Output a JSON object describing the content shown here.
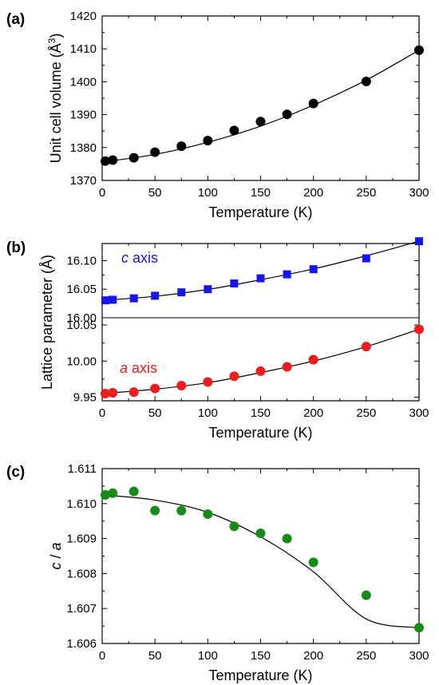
{
  "chart_data": [
    {
      "panel_label": "(a)",
      "type": "scatter",
      "xlabel": "Temperature (K)",
      "ylabel": "Unit cell volume (Å",
      "ylabel_sup": "3",
      "ylabel_end": ")",
      "xlim": [
        0,
        300
      ],
      "ylim": [
        1370,
        1420
      ],
      "xticks": [
        0,
        50,
        100,
        150,
        200,
        250,
        300
      ],
      "yticks": [
        1370,
        1380,
        1390,
        1400,
        1410,
        1420
      ],
      "grid": false,
      "series": [
        {
          "marker": "circle",
          "color": "#000000",
          "x": [
            3,
            10,
            30,
            50,
            75,
            100,
            125,
            150,
            175,
            200,
            250,
            300
          ],
          "y": [
            1375.9,
            1376.2,
            1376.9,
            1378.6,
            1380.4,
            1382.1,
            1385.2,
            1387.9,
            1390.1,
            1393.4,
            1400.1,
            1409.6
          ],
          "fit_curve": {
            "x": [
              0,
              50,
              100,
              150,
              200,
              250,
              300
            ],
            "y": [
              1375.6,
              1377.9,
              1381.6,
              1386.5,
              1392.9,
              1400.5,
              1409.6
            ]
          }
        }
      ]
    },
    {
      "panel_label": "(b)",
      "type": "scatter",
      "xlabel": "Temperature (K)",
      "ylabel": "Lattice parameter (Å)",
      "xlim": [
        0,
        300
      ],
      "xticks": [
        0,
        50,
        100,
        150,
        200,
        250,
        300
      ],
      "grid": false,
      "sub_axes": [
        {
          "ylim": [
            16.0,
            16.13
          ],
          "yticks": [
            16.0,
            16.05,
            16.1
          ],
          "ytick_labels": [
            "16.00",
            "16.05",
            "16.10"
          ],
          "series": [
            {
              "name": "c axis",
              "name_italic": "c",
              "name_rest": " axis",
              "marker": "square",
              "color": "#1515ee",
              "x": [
                3,
                10,
                30,
                50,
                75,
                100,
                125,
                150,
                175,
                200,
                250,
                300
              ],
              "y": [
                16.0305,
                16.0315,
                16.034,
                16.0385,
                16.0445,
                16.05,
                16.06,
                16.069,
                16.076,
                16.085,
                16.104,
                16.134
              ],
              "fit_curve": {
                "x": [
                  0,
                  50,
                  100,
                  150,
                  200,
                  250,
                  300
                ],
                "y": [
                  16.0305,
                  16.0375,
                  16.0495,
                  16.0665,
                  16.0855,
                  16.1085,
                  16.134
                ]
              }
            }
          ]
        },
        {
          "ylim": [
            9.945,
            10.06
          ],
          "yticks": [
            9.95,
            10.0,
            10.05
          ],
          "ytick_labels": [
            "9.95",
            "10.00",
            "10.05"
          ],
          "series": [
            {
              "name": "a axis",
              "name_italic": "a",
              "name_rest": " axis",
              "marker": "circle",
              "color": "#ee1c1c",
              "x": [
                3,
                10,
                30,
                50,
                75,
                100,
                125,
                150,
                175,
                200,
                250,
                300
              ],
              "y": [
                9.955,
                9.956,
                9.957,
                9.962,
                9.966,
                9.971,
                9.979,
                9.986,
                9.992,
                10.002,
                10.02,
                10.044
              ],
              "fit_curve": {
                "x": [
                  0,
                  50,
                  100,
                  150,
                  200,
                  250,
                  300
                ],
                "y": [
                  9.955,
                  9.961,
                  9.97,
                  9.984,
                  10.0,
                  10.02,
                  10.044
                ]
              }
            }
          ]
        }
      ]
    },
    {
      "panel_label": "(c)",
      "type": "scatter",
      "xlabel": "Temperature (K)",
      "ylabel": "c / a",
      "xlim": [
        0,
        300
      ],
      "ylim": [
        1.606,
        1.611
      ],
      "xticks": [
        0,
        50,
        100,
        150,
        200,
        250,
        300
      ],
      "yticks": [
        1.606,
        1.607,
        1.608,
        1.609,
        1.61,
        1.611
      ],
      "ytick_labels": [
        "1.606",
        "1.607",
        "1.608",
        "1.609",
        "1.610",
        "1.611"
      ],
      "grid": false,
      "series": [
        {
          "marker": "circle",
          "color": "#168c16",
          "x": [
            3,
            10,
            30,
            50,
            75,
            100,
            125,
            150,
            175,
            200,
            250,
            300
          ],
          "y": [
            1.61025,
            1.6103,
            1.61035,
            1.6098,
            1.6098,
            1.6097,
            1.60935,
            1.60915,
            1.609,
            1.60832,
            1.60738,
            1.60645
          ],
          "fit_curve": {
            "x": [
              0,
              50,
              100,
              150,
              200,
              250,
              300
            ],
            "y": [
              1.61025,
              1.6101,
              1.60975,
              1.60905,
              1.60805,
              1.6067,
              1.60645
            ]
          }
        }
      ]
    }
  ]
}
